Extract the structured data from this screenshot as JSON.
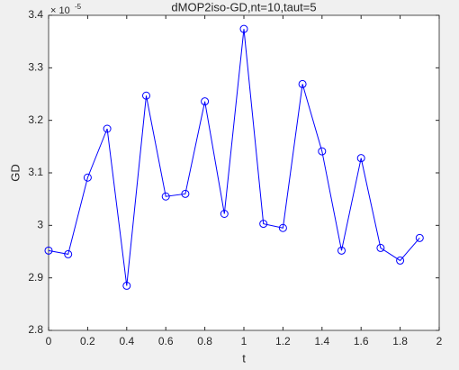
{
  "chart_data": {
    "type": "line",
    "title": "dMOP2iso-GD,nt=10,taut=5",
    "x_label": "t",
    "y_label": "GD",
    "y_exponent": {
      "base": "× 10",
      "power": "-5"
    },
    "x": [
      0,
      0.1,
      0.2,
      0.3,
      0.4,
      0.5,
      0.6,
      0.7,
      0.8,
      0.9,
      1.0,
      1.1,
      1.2,
      1.3,
      1.4,
      1.5,
      1.6,
      1.7,
      1.8,
      1.9
    ],
    "series": [
      {
        "name": "GD",
        "color": "#0000ff",
        "values": [
          2.952,
          2.945,
          3.091,
          3.184,
          2.885,
          3.247,
          3.055,
          3.06,
          3.236,
          3.022,
          3.374,
          3.003,
          2.995,
          3.269,
          3.141,
          2.952,
          3.128,
          2.957,
          2.933,
          2.976
        ]
      }
    ],
    "xlim": [
      0,
      2
    ],
    "xticks": [
      0,
      0.2,
      0.4,
      0.6,
      0.8,
      1,
      1.2,
      1.4,
      1.6,
      1.8,
      2
    ],
    "ylim": [
      2.8,
      3.4
    ],
    "yticks": [
      2.8,
      2.9,
      3,
      3.1,
      3.2,
      3.3,
      3.4
    ],
    "grid": false,
    "marker": "circle"
  }
}
